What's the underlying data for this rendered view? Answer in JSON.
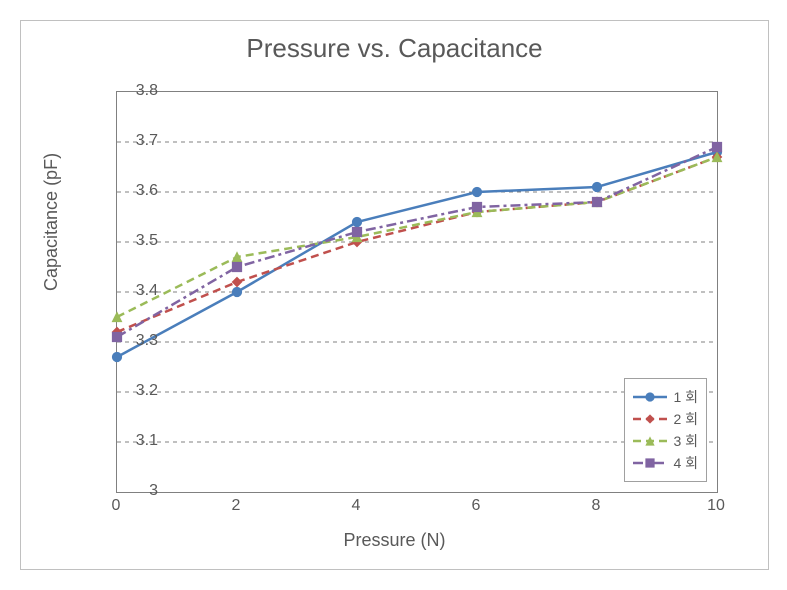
{
  "chart": {
    "type": "line",
    "title": "Pressure vs. Capacitance",
    "title_fontsize": 26,
    "title_color": "#595959",
    "xlabel": "Pressure (N)",
    "ylabel": "Capacitance (pF)",
    "label_fontsize": 18,
    "label_color": "#595959",
    "tick_fontsize": 16,
    "background_color": "#ffffff",
    "grid_color": "#808080",
    "grid_dash": "4,4",
    "border_color": "#808080",
    "xlim": [
      0,
      10
    ],
    "ylim": [
      3,
      3.8
    ],
    "xticks": [
      0,
      2,
      4,
      6,
      8,
      10
    ],
    "yticks": [
      3,
      3.1,
      3.2,
      3.3,
      3.4,
      3.5,
      3.6,
      3.7,
      3.8
    ],
    "x": [
      0,
      2,
      4,
      6,
      8,
      10
    ],
    "series": [
      {
        "label": "1 회",
        "color": "#4a7ebb",
        "line_style": "solid",
        "marker": "circle",
        "marker_size": 6,
        "line_width": 2.5,
        "y": [
          3.27,
          3.4,
          3.54,
          3.6,
          3.61,
          3.68
        ]
      },
      {
        "label": "2 회",
        "color": "#c0504d",
        "line_style": "dashed",
        "marker": "diamond",
        "marker_size": 6,
        "line_width": 2.5,
        "y": [
          3.32,
          3.42,
          3.5,
          3.56,
          3.58,
          3.67
        ]
      },
      {
        "label": "3 회",
        "color": "#9bbb59",
        "line_style": "dashed",
        "marker": "triangle",
        "marker_size": 6,
        "line_width": 2.5,
        "y": [
          3.35,
          3.47,
          3.51,
          3.56,
          3.58,
          3.67
        ]
      },
      {
        "label": "4 회",
        "color": "#8064a2",
        "line_style": "dashdot",
        "marker": "square",
        "marker_size": 6,
        "line_width": 2.5,
        "y": [
          3.31,
          3.45,
          3.52,
          3.57,
          3.58,
          3.69
        ]
      }
    ],
    "legend_position": "bottom-right"
  }
}
